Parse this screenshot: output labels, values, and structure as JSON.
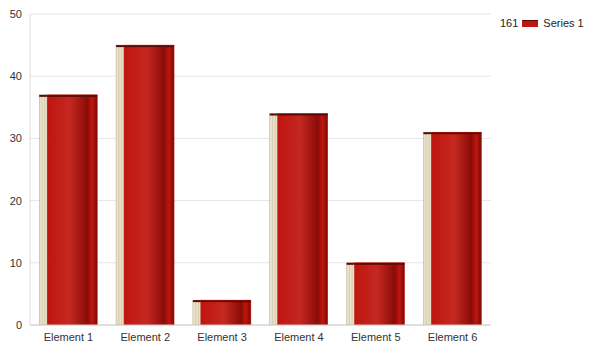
{
  "chart_data": {
    "type": "bar",
    "categories": [
      "Element 1",
      "Element 2",
      "Element 3",
      "Element 4",
      "Element 5",
      "Element 6"
    ],
    "series": [
      {
        "name": "Series 1",
        "color": "#c0150f",
        "values": [
          37,
          45,
          4,
          34,
          10,
          31
        ]
      }
    ],
    "annotations": [
      "161"
    ],
    "ylim": [
      0,
      50
    ],
    "yticks": [
      0,
      10,
      20,
      30,
      40,
      50
    ],
    "grid": true,
    "legend": "top-right"
  }
}
